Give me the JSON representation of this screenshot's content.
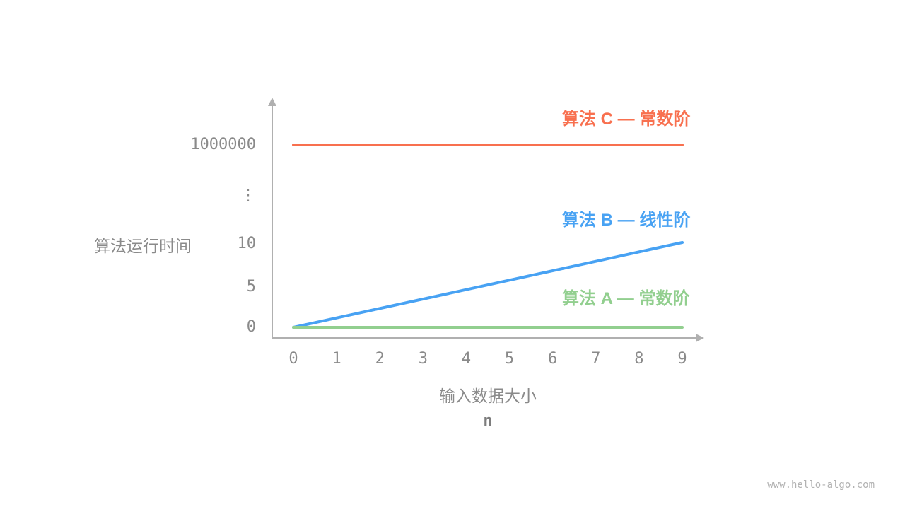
{
  "chart_data": {
    "type": "line",
    "title": "",
    "xlabel": "输入数据大小",
    "xlabel_sub": "n",
    "ylabel": "算法运行时间",
    "x_ticks": [
      "0",
      "1",
      "2",
      "3",
      "4",
      "5",
      "6",
      "7",
      "8",
      "9"
    ],
    "y_ticks": [
      "1000000",
      "⋮",
      "10",
      "5",
      "0"
    ],
    "x_range": [
      0,
      9
    ],
    "y_axis_break_symbol": "⋮",
    "grid": false,
    "legend_position": "right of plot, above each line",
    "series": [
      {
        "name": "算法 C — 常数阶",
        "color": "#F8704F",
        "points": [
          [
            0,
            1000000
          ],
          [
            9,
            1000000
          ]
        ]
      },
      {
        "name": "算法 B — 线性阶",
        "color": "#48A2F3",
        "points": [
          [
            0,
            0
          ],
          [
            9,
            10
          ]
        ]
      },
      {
        "name": "算法 A — 常数阶",
        "color": "#92CF8F",
        "points": [
          [
            0,
            0
          ],
          [
            9,
            0
          ]
        ]
      }
    ],
    "axis_color": "#b0b0b0",
    "tick_text_color": "#8a8a8a"
  },
  "watermark": "www.hello-algo.com"
}
